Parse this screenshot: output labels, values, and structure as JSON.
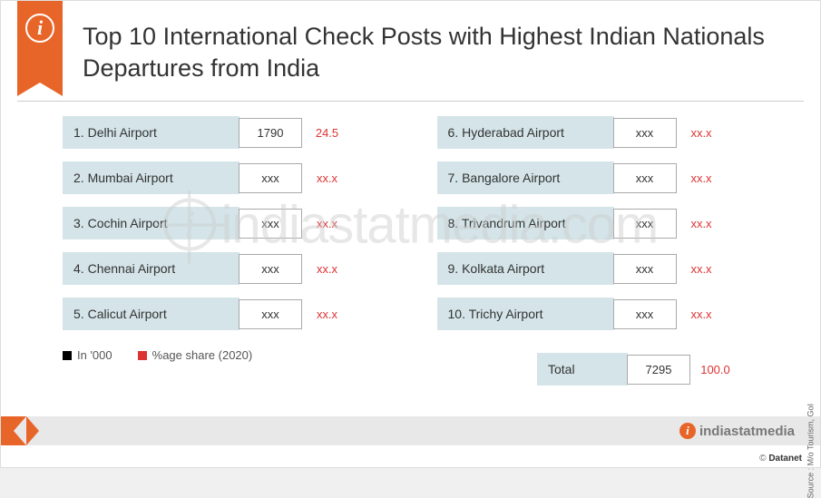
{
  "header": {
    "title": "Top 10 International Check Posts with Highest Indian Nationals Departures from India"
  },
  "rows": [
    {
      "rank": "1.",
      "name": "Delhi Airport",
      "value": "1790",
      "pct": "24.5"
    },
    {
      "rank": "2.",
      "name": "Mumbai Airport",
      "value": "xxx",
      "pct": "xx.x"
    },
    {
      "rank": "3.",
      "name": "Cochin Airport",
      "value": "xxx",
      "pct": "xx.x"
    },
    {
      "rank": "4.",
      "name": "Chennai Airport",
      "value": "xxx",
      "pct": "xx.x"
    },
    {
      "rank": "5.",
      "name": "Calicut Airport",
      "value": "xxx",
      "pct": "xx.x"
    },
    {
      "rank": "6.",
      "name": "Hyderabad Airport",
      "value": "xxx",
      "pct": "xx.x"
    },
    {
      "rank": "7.",
      "name": "Bangalore Airport",
      "value": "xxx",
      "pct": "xx.x"
    },
    {
      "rank": "8.",
      "name": "Trivandrum Airport",
      "value": "xxx",
      "pct": "xx.x"
    },
    {
      "rank": "9.",
      "name": "Kolkata Airport",
      "value": "xxx",
      "pct": "xx.x"
    },
    {
      "rank": "10.",
      "name": "Trichy Airport",
      "value": "xxx",
      "pct": "xx.x"
    }
  ],
  "total": {
    "label": "Total",
    "value": "7295",
    "pct": "100.0"
  },
  "legend": {
    "unit": "In '000",
    "share": "%age share (2020)"
  },
  "watermark": "indiastatmedia.com",
  "footer": {
    "brand": "indiastatmedia"
  },
  "source": "Source : M/o Tourism, GoI",
  "credit_prefix": "© ",
  "credit_brand": "Datanet"
}
